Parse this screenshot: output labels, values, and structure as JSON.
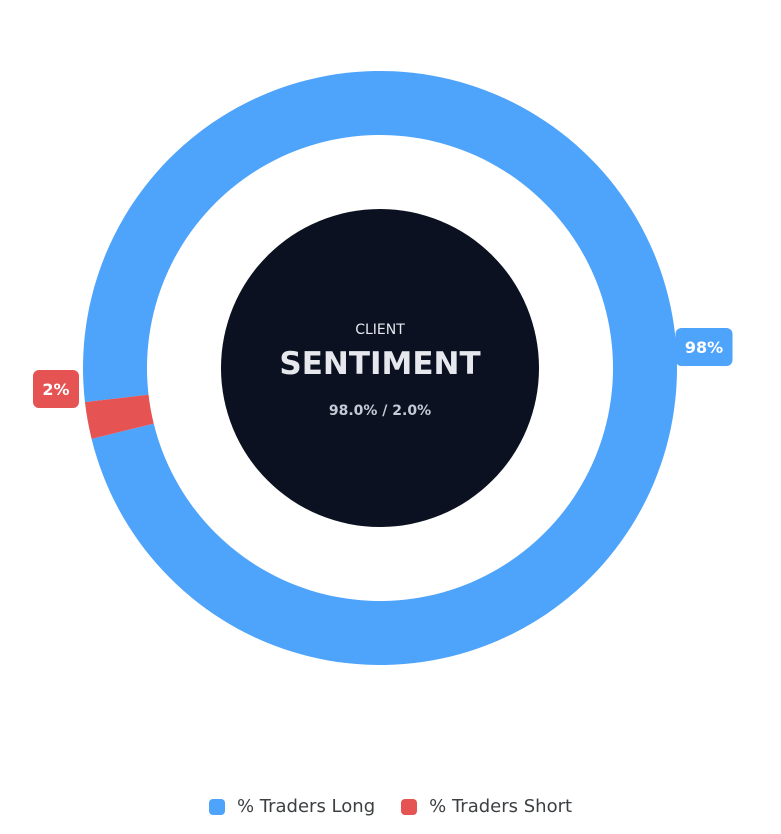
{
  "chart_data": {
    "type": "pie",
    "series": [
      {
        "name": "% Traders Long",
        "value": 98.0,
        "label": "98%",
        "color": "#4ea3fb"
      },
      {
        "name": "% Traders Short",
        "value": 2.0,
        "label": "2%",
        "color": "#e55353"
      }
    ],
    "center": {
      "title_small": "CLIENT",
      "title_large": "SENTIMENT",
      "summary": "98.0% / 2.0%",
      "fill_color": "#0b1120"
    },
    "legend_placement": "bottom"
  }
}
